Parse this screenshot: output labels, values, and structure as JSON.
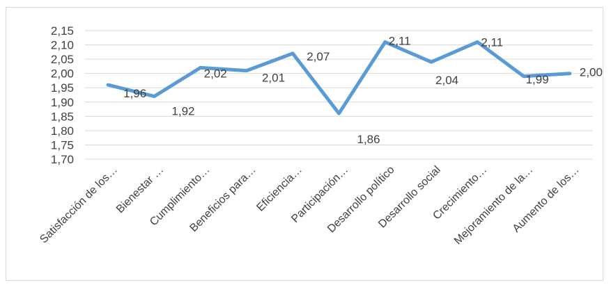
{
  "chart_data": {
    "type": "line",
    "categories": [
      "Satisfacción de los…",
      "Bienestar …",
      "Cumplimiento…",
      "Beneficios para…",
      "Eficiencia…",
      "Participación…",
      "Desarrollo político",
      "Desarrollo social",
      "Crecimiento…",
      "Mejoramiento de la…",
      "Aumento de los…"
    ],
    "series": [
      {
        "values": [
          1.96,
          1.92,
          2.02,
          2.01,
          2.07,
          1.86,
          2.11,
          2.04,
          2.11,
          1.99,
          2.0
        ],
        "labels": [
          "1,96",
          "1,92",
          "2,02",
          "2,01",
          "2,07",
          "1,86",
          "2,11",
          "2,04",
          "2,11",
          "1,99",
          "2,00"
        ],
        "color": "#5b9bd5"
      }
    ],
    "y_ticks": [
      {
        "value": 1.7,
        "label": "1,70"
      },
      {
        "value": 1.75,
        "label": "1,75"
      },
      {
        "value": 1.8,
        "label": "1,80"
      },
      {
        "value": 1.85,
        "label": "1,85"
      },
      {
        "value": 1.9,
        "label": "1,90"
      },
      {
        "value": 1.95,
        "label": "1,95"
      },
      {
        "value": 2.0,
        "label": "2,00"
      },
      {
        "value": 2.05,
        "label": "2,05"
      },
      {
        "value": 2.1,
        "label": "2,10"
      },
      {
        "value": 2.15,
        "label": "2,15"
      }
    ],
    "ylim": [
      1.7,
      2.15
    ],
    "grid": true,
    "legend": "none",
    "title": "",
    "xlabel": "",
    "ylabel": ""
  }
}
